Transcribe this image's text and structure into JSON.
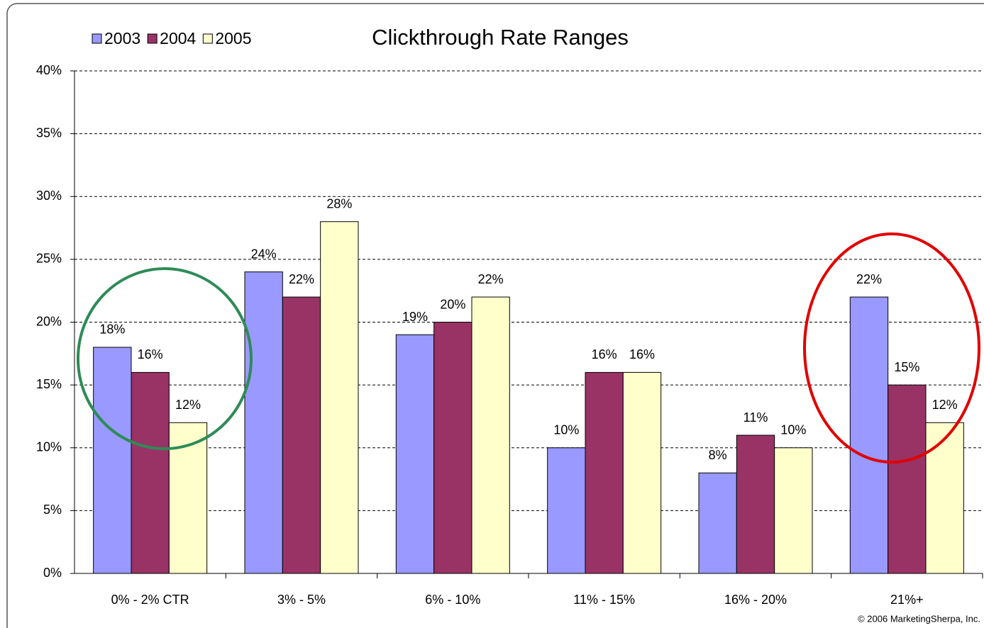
{
  "chart_data": {
    "type": "bar",
    "title": "Clickthrough Rate Ranges",
    "categories": [
      "0% - 2% CTR",
      "3% - 5%",
      "6% - 10%",
      "11% - 15%",
      "16% - 20%",
      "21%+"
    ],
    "series": [
      {
        "name": "2003",
        "color": "#9999ff",
        "values": [
          18,
          24,
          19,
          10,
          8,
          22
        ],
        "value_labels": [
          "18%",
          "24%",
          "19%",
          "10%",
          "8%",
          "22%"
        ]
      },
      {
        "name": "2004",
        "color": "#993366",
        "values": [
          16,
          22,
          20,
          16,
          11,
          15
        ],
        "value_labels": [
          "16%",
          "22%",
          "20%",
          "16%",
          "11%",
          "15%"
        ]
      },
      {
        "name": "2005",
        "color": "#ffffcc",
        "values": [
          12,
          28,
          22,
          16,
          10,
          12
        ],
        "value_labels": [
          "12%",
          "28%",
          "22%",
          "16%",
          "10%",
          "12%"
        ]
      }
    ],
    "ylim": [
      0,
      40
    ],
    "yticks": [
      {
        "value": 0,
        "label": "0%"
      },
      {
        "value": 5,
        "label": "5%"
      },
      {
        "value": 10,
        "label": "10%"
      },
      {
        "value": 15,
        "label": "15%"
      },
      {
        "value": 20,
        "label": "20%"
      },
      {
        "value": 25,
        "label": "25%"
      },
      {
        "value": 30,
        "label": "30%"
      },
      {
        "value": 35,
        "label": "35%"
      },
      {
        "value": 40,
        "label": "40%"
      }
    ],
    "grid": true,
    "legend": "top-left",
    "source": "© 2006 MarketingSherpa, Inc."
  }
}
